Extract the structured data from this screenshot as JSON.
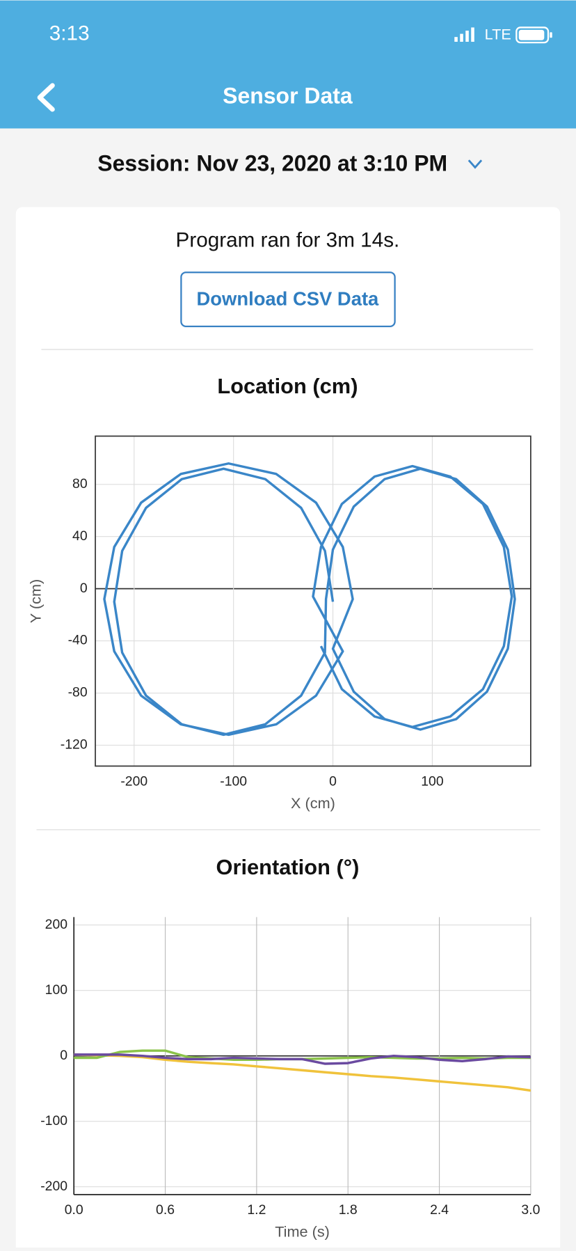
{
  "status_bar": {
    "time": "3:13",
    "network": "LTE"
  },
  "header": {
    "title": "Sensor Data"
  },
  "session": "Session: Nov 23, 2020 at 3:10 PM",
  "summary": "Program ran for 3m 14s.",
  "download_button": "Download CSV Data",
  "chart_data": [
    {
      "type": "line",
      "title": "Location (cm)",
      "xlabel": "X (cm)",
      "ylabel": "Y (cm)",
      "grid": true,
      "xlim": [
        -239,
        199
      ],
      "xticks": [
        -200,
        -100,
        0,
        100
      ],
      "ylim": [
        -136,
        117
      ],
      "yticks": [
        -120,
        -80,
        -40,
        0,
        40,
        80
      ],
      "x": [
        0,
        -8,
        -32,
        -68,
        -110,
        -152,
        -188,
        -212,
        -220,
        -212,
        -188,
        -152,
        -110,
        -68,
        -32,
        -8,
        -7,
        0,
        21,
        52,
        88,
        124,
        155,
        176,
        183,
        176,
        155,
        124,
        88,
        52,
        21,
        0,
        20,
        10,
        -17,
        -57,
        -105,
        -153,
        -193,
        -220,
        -230,
        -220,
        -193,
        -153,
        -105,
        -57,
        -17,
        10,
        -20,
        -12,
        9,
        42,
        80,
        118,
        151,
        172,
        180,
        172,
        151,
        118,
        80,
        42,
        9,
        -12
      ],
      "series": [
        {
          "color": "#3a86c8",
          "values": [
            -10,
            29,
            62,
            84,
            92,
            84,
            62,
            29,
            -10,
            -49,
            -82,
            -104,
            -112,
            -104,
            -82,
            -49,
            -8,
            30,
            63,
            84,
            92,
            84,
            63,
            30,
            -8,
            -46,
            -79,
            -100,
            -108,
            -100,
            -79,
            -46,
            -8,
            32,
            66,
            88,
            96,
            88,
            66,
            32,
            -8,
            -48,
            -82,
            -104,
            -112,
            -104,
            -82,
            -48,
            -6,
            32,
            65,
            86,
            94,
            86,
            65,
            32,
            -6,
            -44,
            -77,
            -98,
            -106,
            -98,
            -77,
            -44
          ]
        }
      ]
    },
    {
      "type": "line",
      "title": "Orientation (°)",
      "xlabel": "Time (s)",
      "grid": true,
      "xlim": [
        0,
        3
      ],
      "xticks": [
        {
          "value": 0,
          "label": "0.0"
        },
        0.6,
        1.2,
        1.8,
        2.4,
        {
          "value": 3,
          "label": "3.0"
        }
      ],
      "ylim": [
        -212,
        212
      ],
      "yticks": [
        -200,
        -100,
        0,
        100,
        200
      ],
      "x": [
        0,
        0.15,
        0.3,
        0.45,
        0.6,
        0.75,
        0.9,
        1.05,
        1.2,
        1.35,
        1.5,
        1.65,
        1.8,
        1.95,
        2.1,
        2.25,
        2.4,
        2.55,
        2.7,
        2.85,
        3.0
      ],
      "series": [
        {
          "color": "#f0c23b",
          "values": [
            2,
            1,
            0,
            -2,
            -6,
            -9,
            -11,
            -13,
            -16,
            -19,
            -22,
            -25,
            -28,
            -31,
            -33,
            -36,
            -39,
            -42,
            -45,
            -48,
            -53
          ]
        },
        {
          "color": "#8bc34a",
          "values": [
            -3,
            -3,
            6,
            8,
            8,
            -2,
            -4,
            -6,
            -6,
            -5,
            -5,
            -4,
            -3,
            -2,
            -3,
            -4,
            -4,
            -3,
            -4,
            -3,
            -3
          ]
        },
        {
          "color": "#6a4aa0",
          "values": [
            2,
            2,
            2,
            0,
            -3,
            -5,
            -5,
            -3,
            -4,
            -5,
            -5,
            -12,
            -11,
            -4,
            0,
            -2,
            -6,
            -8,
            -5,
            -1,
            -2
          ]
        }
      ]
    }
  ]
}
